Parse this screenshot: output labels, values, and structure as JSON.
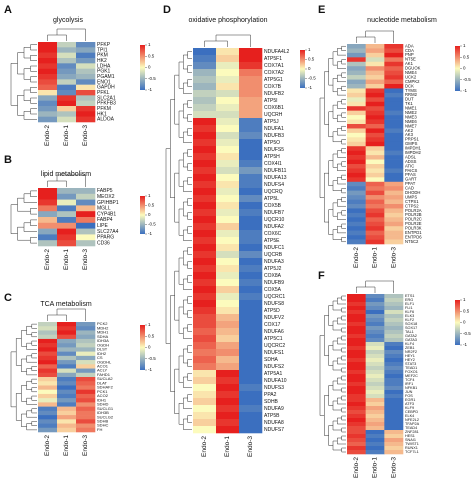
{
  "chart_data": [
    {
      "type": "heatmap",
      "panel_label": "A",
      "title": "glycolysis",
      "columns": [
        "Endo-2",
        "Endo-1",
        "Endo-3"
      ],
      "rows": [
        "PFKP",
        "TPI1",
        "PKM",
        "HK2",
        "LDHA",
        "PGK1",
        "PGAM1",
        "ENO1",
        "GAPDH",
        "PFKL",
        "SLC2A1",
        "PFKFB3",
        "PFKM",
        "HK1",
        "ALDOA"
      ],
      "values": [
        [
          1,
          -0.3,
          -0.8
        ],
        [
          1,
          -0.5,
          -0.6
        ],
        [
          0.9,
          -0.2,
          -0.9
        ],
        [
          1,
          -0.4,
          -0.7
        ],
        [
          0.9,
          -0.8,
          -0.2
        ],
        [
          1,
          -0.7,
          -0.4
        ],
        [
          0.9,
          -0.6,
          -0.5
        ],
        [
          0.8,
          -0.3,
          -0.8
        ],
        [
          0.7,
          -0.9,
          0.1
        ],
        [
          0.1,
          -0.8,
          0.8
        ],
        [
          -0.6,
          0.9,
          -0.4
        ],
        [
          -0.8,
          1,
          -0.3
        ],
        [
          -0.7,
          0.2,
          0.9
        ],
        [
          -0.5,
          -0.4,
          1
        ],
        [
          -0.7,
          -0.2,
          0.9
        ]
      ],
      "zlim": [
        -1,
        1
      ],
      "zticks": [
        1,
        0.5,
        0,
        -0.5,
        -1
      ],
      "colors": [
        "#3b6fbf",
        "#fcfbbd",
        "#e6201e"
      ]
    },
    {
      "type": "heatmap",
      "panel_label": "B",
      "title": "lipid metabolism",
      "columns": [
        "Endo-2",
        "Endo-1",
        "Endo-3"
      ],
      "rows": [
        "FABP5",
        "MEOX2",
        "GPIHBP1",
        "MGLL",
        "CYP4B1",
        "FABP4",
        "LIPE",
        "SLC27A4",
        "PPARG",
        "CD36"
      ],
      "values": [
        [
          1,
          -0.5,
          -0.5
        ],
        [
          1,
          -0.7,
          -0.3
        ],
        [
          0.9,
          -0.1,
          -0.8
        ],
        [
          0.6,
          -0.9,
          0.3
        ],
        [
          -0.6,
          -0.4,
          1
        ],
        [
          0.3,
          -0.9,
          0.6
        ],
        [
          0.5,
          0.5,
          -1
        ],
        [
          -0.6,
          1,
          -0.4
        ],
        [
          -0.9,
          0.9,
          0
        ],
        [
          -0.4,
          0.8,
          -0.4
        ]
      ],
      "zlim": [
        -1,
        1
      ],
      "zticks": [
        1,
        0.5,
        0,
        -0.5,
        -1
      ],
      "colors": [
        "#3b6fbf",
        "#fcfbbd",
        "#e6201e"
      ]
    },
    {
      "type": "heatmap",
      "panel_label": "C",
      "title": "TCA metabolism",
      "columns": [
        "Endo-2",
        "Endo-1",
        "Endo-3"
      ],
      "rows": [
        "PCK2",
        "MDH2",
        "MDH1",
        "SDHA",
        "IDH3A",
        "OGDH",
        "DLST",
        "IDH2",
        "CS",
        "OGDHL",
        "ACO1",
        "ACLY",
        "FAHD1",
        "SUCLA2",
        "DLAT",
        "SDHAF2",
        "PCK1",
        "ACO2",
        "IDH1",
        "SDHD",
        "SUCLG1",
        "IDH3B",
        "SUCLG2",
        "SDHB",
        "SDHC",
        "FH"
      ],
      "values": [
        [
          -0.3,
          1,
          -0.7
        ],
        [
          -0.2,
          0.9,
          -0.8
        ],
        [
          -0.4,
          1,
          -0.5
        ],
        [
          -0.3,
          0.8,
          -0.6
        ],
        [
          1,
          -0.6,
          -0.4
        ],
        [
          0.9,
          -0.7,
          -0.3
        ],
        [
          1,
          -0.5,
          -0.5
        ],
        [
          0.8,
          -0.8,
          -0.1
        ],
        [
          0.9,
          -0.4,
          -0.6
        ],
        [
          1,
          -0.7,
          -0.2
        ],
        [
          0.7,
          -0.9,
          0.2
        ],
        [
          0.9,
          -0.2,
          -0.7
        ],
        [
          0.8,
          -0.6,
          -0.3
        ],
        [
          0.2,
          -0.9,
          0.8
        ],
        [
          0.1,
          -0.8,
          0.7
        ],
        [
          0.3,
          -1,
          0.6
        ],
        [
          0,
          -0.8,
          0.9
        ],
        [
          0.2,
          -0.9,
          0.7
        ],
        [
          -0.1,
          -0.7,
          0.8
        ],
        [
          0.3,
          -0.9,
          0.5
        ],
        [
          -0.9,
          0.3,
          0.7
        ],
        [
          -0.8,
          0.2,
          0.6
        ],
        [
          -1,
          0.4,
          0.6
        ],
        [
          -0.8,
          0.1,
          0.8
        ],
        [
          -0.9,
          0.3,
          0.5
        ],
        [
          -0.7,
          0.2,
          0.6
        ]
      ],
      "zlim": [
        -1,
        1
      ],
      "zticks": [
        1,
        0.5,
        0,
        -0.5,
        -1
      ],
      "colors": [
        "#3b6fbf",
        "#fcfbbd",
        "#e6201e"
      ]
    },
    {
      "type": "heatmap",
      "panel_label": "D",
      "title": "oxidative phosphorylation",
      "columns": [
        "Endo-2",
        "Endo-1",
        "Endo-3"
      ],
      "rows": [
        "NDUFA4L2",
        "ATP5F1",
        "COX7A1",
        "COX7A2",
        "ATP5G1",
        "COX7B",
        "NDUFB2",
        "ATP5I",
        "COX6B1",
        "UQCRH",
        "ATP5J",
        "NDUFA1",
        "NDUFB3",
        "ATP5O",
        "NDUFS5",
        "ATP5H",
        "COX4I1",
        "NDUFB11",
        "NDUFA13",
        "NDUFS4",
        "UQCRQ",
        "ATP5L",
        "COX5B",
        "NDUFB7",
        "UQCR10",
        "NDUFA2",
        "COX6C",
        "ATP5E",
        "NDUFC1",
        "UQCRB",
        "NDUFA3",
        "ATP5J2",
        "COX8A",
        "NDUFB9",
        "COX5A",
        "UQCRC1",
        "NDUFS8",
        "ATP5D",
        "NDUFV2",
        "COX17",
        "NDUFA6",
        "ATP5C1",
        "UQCRC2",
        "NDUFS1",
        "SDHA",
        "NDUFS2",
        "ATP5A1",
        "NDUFA10",
        "NDUFS3",
        "PPA2",
        "SDHB",
        "NDUFA9",
        "ATP5B",
        "NDUFA8",
        "NDUFS7"
      ],
      "values": [
        [
          -1,
          0.1,
          1
        ],
        [
          -0.9,
          0.2,
          1
        ],
        [
          -0.8,
          -0.1,
          0.9
        ],
        [
          -0.5,
          0,
          0.6
        ],
        [
          -0.4,
          -0.1,
          0.5
        ],
        [
          -0.5,
          0.1,
          0.5
        ],
        [
          -0.3,
          -0.2,
          0.5
        ],
        [
          -0.4,
          0,
          0.4
        ],
        [
          -0.3,
          -0.1,
          0.4
        ],
        [
          -0.2,
          -0.2,
          0.4
        ],
        [
          1,
          -0.1,
          -0.9
        ],
        [
          0.9,
          0,
          -0.9
        ],
        [
          1,
          -0.2,
          -0.8
        ],
        [
          0.9,
          -0.1,
          -1
        ],
        [
          1,
          0,
          -1
        ],
        [
          0.9,
          0.1,
          -1
        ],
        [
          1,
          -0.1,
          -0.9
        ],
        [
          0.9,
          -0.2,
          -0.7
        ],
        [
          1,
          0,
          -0.9
        ],
        [
          0.9,
          0.1,
          -0.9
        ],
        [
          1,
          -0.1,
          -1
        ],
        [
          0.9,
          0,
          -0.8
        ],
        [
          1,
          0.1,
          -1
        ],
        [
          0.9,
          -0.1,
          -0.9
        ],
        [
          1,
          0,
          -1
        ],
        [
          0.9,
          0.2,
          -1
        ],
        [
          1,
          -0.1,
          -0.9
        ],
        [
          0.9,
          0,
          -0.9
        ],
        [
          1,
          0.1,
          -1
        ],
        [
          0.9,
          -0.2,
          -0.8
        ],
        [
          1,
          0,
          -1
        ],
        [
          0.9,
          0.1,
          -0.9
        ],
        [
          1,
          -0.1,
          -1
        ],
        [
          0.9,
          0,
          -0.9
        ],
        [
          1,
          0.2,
          -1
        ],
        [
          0.9,
          -0.1,
          -0.9
        ],
        [
          1,
          0,
          -1
        ],
        [
          0.9,
          0.1,
          -1
        ],
        [
          0.8,
          0.3,
          -1
        ],
        [
          0.8,
          0.4,
          -1
        ],
        [
          0.7,
          0.3,
          -1
        ],
        [
          0.8,
          0.2,
          -1
        ],
        [
          0.7,
          0.4,
          -1
        ],
        [
          0.6,
          0.5,
          -1
        ],
        [
          0.7,
          0.3,
          -1
        ],
        [
          0.6,
          0.4,
          -1
        ],
        [
          0.1,
          1,
          -1
        ],
        [
          0.2,
          0.9,
          -1
        ],
        [
          0,
          1,
          -0.9
        ],
        [
          0.1,
          0.9,
          -1
        ],
        [
          0.2,
          1,
          -1
        ],
        [
          0,
          0.9,
          -0.9
        ],
        [
          0.1,
          1,
          -1
        ],
        [
          0.2,
          0.9,
          -1
        ],
        [
          0,
          1,
          -1
        ]
      ],
      "zlim": [
        -1,
        1
      ],
      "zticks": [
        1,
        0.5,
        0,
        -0.5,
        -1
      ],
      "colors": [
        "#3b6fbf",
        "#fcfbbd",
        "#e6201e"
      ]
    },
    {
      "type": "heatmap",
      "panel_label": "E",
      "title": "nucleotide metabolism",
      "columns": [
        "Endo-2",
        "Endo-1",
        "Endo-3"
      ],
      "rows": [
        "ADA",
        "CDA",
        "PNP",
        "NT5E",
        "AK1",
        "DGUOK",
        "NME4",
        "UCK2",
        "CMPK2",
        "DCK",
        "TYMS",
        "RRM2",
        "DUT",
        "TK1",
        "NME1",
        "NME2",
        "NME3",
        "NME6",
        "NME7",
        "AK2",
        "AK3",
        "PRPS1",
        "GMPS",
        "IMPDH1",
        "IMPDH2",
        "ADSL",
        "ADSS",
        "ATIC",
        "PAICS",
        "PFAS",
        "GART",
        "PPAT",
        "CAD",
        "DHODH",
        "UMPS",
        "CTPS1",
        "CTPS2",
        "POLR2A",
        "POLR2B",
        "POLR2C",
        "POLR2E",
        "POLR3K",
        "ENTPD1",
        "ENTPD6",
        "NT5C2"
      ],
      "values": [
        [
          -0.6,
          0.3,
          0.9
        ],
        [
          -0.5,
          0.4,
          0.8
        ],
        [
          -0.7,
          0.2,
          1
        ],
        [
          0.9,
          -0.2,
          0.6
        ],
        [
          -0.4,
          0.1,
          0.9
        ],
        [
          -0.6,
          0.5,
          0.7
        ],
        [
          -0.5,
          0.3,
          0.8
        ],
        [
          -0.3,
          0.2,
          0.9
        ],
        [
          -0.6,
          0.4,
          0.7
        ],
        [
          -0.5,
          0.2,
          1
        ],
        [
          0.1,
          0.9,
          -1
        ],
        [
          0.2,
          1,
          -0.9
        ],
        [
          -0.1,
          0.8,
          -1
        ],
        [
          0.1,
          1,
          -1
        ],
        [
          0.9,
          0.8,
          -1
        ],
        [
          0.2,
          0.9,
          -0.9
        ],
        [
          0,
          1,
          -1
        ],
        [
          0.1,
          0.9,
          -1
        ],
        [
          0.8,
          0.7,
          -1
        ],
        [
          0.2,
          1,
          -0.9
        ],
        [
          0,
          0.8,
          -1
        ],
        [
          0.1,
          0.9,
          -1
        ],
        [
          0.2,
          1,
          -1
        ],
        [
          0.9,
          0.2,
          -1
        ],
        [
          1,
          0.1,
          -0.9
        ],
        [
          0.9,
          0.3,
          -1
        ],
        [
          1,
          0,
          -1
        ],
        [
          0.8,
          0.2,
          -1
        ],
        [
          0.9,
          0.1,
          -0.9
        ],
        [
          1,
          0.2,
          -1
        ],
        [
          0.9,
          0,
          -1
        ],
        [
          -0.8,
          0.7,
          0.4
        ],
        [
          -0.9,
          0.6,
          0.5
        ],
        [
          -0.7,
          0.8,
          0.3
        ],
        [
          -0.8,
          0.5,
          0.4
        ],
        [
          -0.9,
          0.7,
          0.3
        ],
        [
          -0.8,
          0.6,
          0.5
        ],
        [
          -1,
          0.8,
          0.3
        ],
        [
          -0.9,
          0.9,
          0.2
        ],
        [
          -1,
          0.7,
          0.3
        ],
        [
          -0.9,
          0.8,
          0.4
        ],
        [
          -1,
          0.9,
          0.2
        ],
        [
          -0.9,
          0.7,
          0.3
        ],
        [
          -1,
          0.8,
          0.3
        ],
        [
          -0.9,
          0.9,
          0.2
        ]
      ],
      "zlim": [
        -1,
        1
      ],
      "zticks": [
        1,
        0.5,
        0,
        -0.5,
        -1
      ],
      "colors": [
        "#3b6fbf",
        "#fcfbbd",
        "#e6201e"
      ]
    },
    {
      "type": "heatmap",
      "panel_label": "F",
      "columns": [
        "Endo-2",
        "Endo-1",
        "Endo-3"
      ],
      "rows": [
        "ETS1",
        "ERG",
        "ELF1",
        "FLI1",
        "KLF6",
        "ELK3",
        "KLF2",
        "SOX18",
        "SOX17",
        "TAL1",
        "GATA2",
        "GATA3",
        "KLF4",
        "ZEB1",
        "NR2F2",
        "HEY1",
        "HEY2",
        "STAT3",
        "TEAD1",
        "FOXO1",
        "MEF2C",
        "TCF4",
        "IRF1",
        "NFKB1",
        "JUN",
        "FOS",
        "EGR1",
        "ATF3",
        "KLF9",
        "CEBPD",
        "ELK4",
        "NFE2L2",
        "TFAP2A",
        "TEAD4",
        "ZNF281",
        "HES1",
        "SNAI1",
        "TWIST1",
        "RUNX1",
        "TCF7L1"
      ],
      "values": [
        [
          1,
          -0.8,
          -0.4
        ],
        [
          1,
          -0.9,
          -0.3
        ],
        [
          0.9,
          -0.7,
          -0.4
        ],
        [
          1,
          -0.8,
          -0.5
        ],
        [
          0.9,
          -1,
          -0.2
        ],
        [
          1,
          -0.7,
          -0.4
        ],
        [
          1,
          -0.8,
          -0.3
        ],
        [
          0.9,
          -0.9,
          -0.4
        ],
        [
          1,
          -0.7,
          -0.5
        ],
        [
          1,
          -0.8,
          -0.4
        ],
        [
          0.9,
          -0.9,
          -0.3
        ],
        [
          1,
          -0.8,
          -0.4
        ],
        [
          1,
          -0.2,
          -0.9
        ],
        [
          0.9,
          -0.1,
          -1
        ],
        [
          1,
          -0.3,
          -0.8
        ],
        [
          1,
          -0.2,
          -0.9
        ],
        [
          0.9,
          -0.1,
          -1
        ],
        [
          1,
          -0.2,
          -0.9
        ],
        [
          1,
          -0.3,
          -0.8
        ],
        [
          0.9,
          -0.2,
          -0.9
        ],
        [
          1,
          -0.1,
          -1
        ],
        [
          1,
          -0.2,
          -0.9
        ],
        [
          0.9,
          -0.3,
          -0.9
        ],
        [
          1,
          -0.2,
          -0.8
        ],
        [
          1,
          -0.1,
          -1
        ],
        [
          0.9,
          -0.2,
          -0.9
        ],
        [
          0.9,
          0.3,
          -1
        ],
        [
          1,
          0.2,
          -1
        ],
        [
          0.9,
          0.4,
          -1
        ],
        [
          0.8,
          0.3,
          -1
        ],
        [
          0.9,
          0.2,
          -1
        ],
        [
          1,
          0.3,
          -1
        ],
        [
          0.9,
          0.4,
          -1
        ],
        [
          0.8,
          0.3,
          -1
        ],
        [
          0.8,
          -1,
          0.3
        ],
        [
          0.9,
          -0.9,
          0.2
        ],
        [
          0.8,
          -1,
          0.4
        ],
        [
          0.7,
          -0.9,
          0.3
        ],
        [
          0.9,
          -1,
          0.2
        ],
        [
          0.8,
          -0.9,
          0.3
        ]
      ],
      "zlim": [
        -1,
        1
      ],
      "zticks": [
        1,
        0.5,
        0,
        -0.5,
        -1
      ],
      "colors": [
        "#3b6fbf",
        "#fcfbbd",
        "#e6201e"
      ]
    }
  ]
}
